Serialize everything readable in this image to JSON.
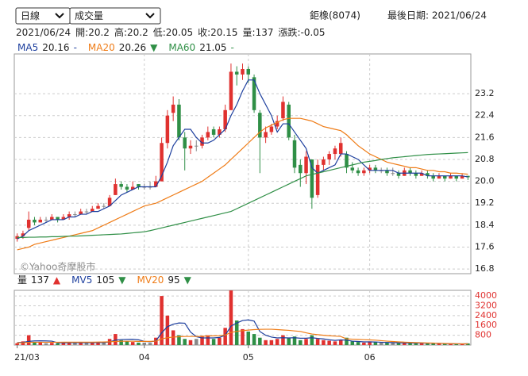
{
  "header": {
    "period": "日線",
    "indicator": "成交量",
    "stock": "鉅橡(8074)",
    "last_date": "最後日期: 2021/06/24"
  },
  "info": {
    "date": "2021/06/24",
    "fields": [
      {
        "label": "開:",
        "value": 20.2
      },
      {
        "label": "高:",
        "value": 20.2
      },
      {
        "label": "低:",
        "value": 20.05
      },
      {
        "label": "收:",
        "value": 20.15
      },
      {
        "label": "量:",
        "value": 137
      },
      {
        "label": "漲跌:",
        "value": -0.05
      }
    ]
  },
  "chart_data": {
    "type": "candlestick",
    "watermark": "©Yahoo奇摩股市",
    "up_color": "#e0312f",
    "down_color": "#2f8f46",
    "flat_color": "#888888",
    "grid": true,
    "categories": [
      "21/03",
      null,
      null,
      null,
      null,
      null,
      null,
      null,
      null,
      null,
      null,
      null,
      null,
      null,
      null,
      null,
      null,
      null,
      null,
      null,
      null,
      null,
      "04",
      null,
      null,
      null,
      null,
      null,
      null,
      null,
      null,
      null,
      null,
      null,
      null,
      null,
      null,
      null,
      null,
      null,
      "05",
      null,
      null,
      null,
      null,
      null,
      null,
      null,
      null,
      null,
      null,
      null,
      null,
      null,
      null,
      null,
      null,
      null,
      null,
      null,
      null,
      "06",
      null,
      null,
      null,
      null,
      null,
      null,
      null,
      null,
      null,
      null,
      null,
      null,
      null,
      null,
      null,
      null,
      null
    ],
    "open": [
      17.9,
      18.0,
      18.3,
      18.6,
      18.5,
      18.6,
      18.6,
      18.7,
      18.6,
      18.7,
      18.8,
      18.8,
      18.9,
      18.9,
      19.0,
      19.1,
      19.1,
      19.5,
      19.9,
      19.8,
      19.7,
      19.9,
      19.8,
      19.8,
      19.8,
      20.0,
      21.4,
      22.5,
      22.8,
      21.6,
      21.2,
      21.3,
      21.3,
      21.6,
      21.9,
      21.7,
      21.9,
      22.6,
      24.0,
      23.9,
      24.1,
      23.8,
      22.5,
      21.6,
      21.8,
      22.0,
      22.3,
      22.8,
      21.5,
      20.6,
      20.3,
      20.8,
      19.5,
      20.6,
      20.8,
      21.0,
      21.0,
      21.0,
      20.5,
      20.4,
      20.3,
      20.4,
      20.5,
      20.4,
      20.4,
      20.3,
      20.3,
      20.2,
      20.4,
      20.3,
      20.2,
      20.3,
      20.2,
      20.1,
      20.2,
      20.1,
      20.2,
      20.1,
      20.2
    ],
    "high": [
      18.1,
      18.2,
      18.9,
      18.7,
      18.7,
      18.7,
      18.8,
      18.7,
      18.8,
      18.9,
      18.9,
      19.0,
      19.0,
      19.1,
      19.2,
      19.2,
      19.5,
      20.1,
      20.0,
      19.9,
      20.0,
      19.9,
      19.9,
      20.0,
      20.2,
      21.6,
      22.6,
      23.1,
      23.0,
      21.8,
      21.5,
      21.5,
      21.7,
      22.0,
      22.0,
      22.0,
      22.8,
      24.3,
      24.2,
      24.3,
      24.2,
      23.9,
      22.6,
      22.0,
      22.1,
      22.4,
      23.1,
      22.9,
      21.7,
      20.8,
      21.1,
      20.8,
      20.8,
      20.9,
      21.1,
      21.3,
      21.6,
      21.1,
      20.7,
      20.5,
      20.5,
      20.6,
      20.6,
      20.5,
      20.5,
      20.5,
      20.4,
      20.5,
      20.5,
      20.4,
      20.4,
      20.4,
      20.3,
      20.3,
      20.2,
      20.3,
      20.2,
      20.3,
      20.2
    ],
    "low": [
      17.8,
      17.9,
      18.2,
      18.4,
      18.5,
      18.5,
      18.6,
      18.5,
      18.6,
      18.6,
      18.7,
      18.8,
      18.8,
      18.9,
      19.0,
      19.0,
      19.1,
      19.5,
      19.7,
      19.6,
      19.7,
      19.7,
      19.7,
      19.7,
      19.8,
      20.0,
      21.2,
      22.2,
      21.5,
      20.4,
      21.0,
      21.1,
      21.2,
      21.5,
      21.6,
      21.6,
      21.8,
      22.6,
      23.5,
      23.7,
      23.6,
      22.5,
      20.3,
      21.4,
      21.7,
      21.9,
      22.2,
      21.5,
      20.3,
      19.8,
      19.9,
      19.0,
      19.4,
      20.4,
      20.6,
      20.8,
      20.9,
      20.3,
      20.3,
      20.2,
      20.2,
      20.3,
      20.3,
      20.3,
      20.2,
      20.2,
      20.1,
      20.2,
      20.2,
      20.1,
      20.2,
      20.1,
      20.0,
      20.1,
      20.0,
      20.1,
      20.0,
      20.1,
      20.05
    ],
    "close": [
      18.0,
      18.1,
      18.6,
      18.5,
      18.6,
      18.6,
      18.7,
      18.6,
      18.7,
      18.8,
      18.8,
      18.9,
      18.9,
      19.0,
      19.1,
      19.1,
      19.4,
      19.9,
      19.8,
      19.7,
      19.8,
      19.8,
      19.8,
      19.8,
      20.0,
      21.4,
      22.4,
      22.8,
      21.6,
      21.2,
      21.3,
      21.3,
      21.6,
      21.8,
      21.7,
      21.9,
      22.6,
      24.0,
      23.9,
      24.1,
      23.9,
      22.6,
      21.6,
      21.8,
      22.0,
      22.2,
      22.9,
      21.6,
      20.5,
      20.3,
      20.9,
      19.4,
      20.6,
      20.8,
      21.0,
      21.2,
      21.4,
      20.5,
      20.4,
      20.3,
      20.4,
      20.5,
      20.4,
      20.4,
      20.3,
      20.3,
      20.2,
      20.4,
      20.3,
      20.2,
      20.3,
      20.2,
      20.1,
      20.2,
      20.1,
      20.2,
      20.1,
      20.2,
      20.15
    ],
    "volume_label": "量",
    "volume_trend": "▲",
    "volume_trend_color": "#e0312f",
    "volume": [
      150,
      300,
      800,
      250,
      200,
      150,
      180,
      150,
      200,
      220,
      180,
      200,
      160,
      180,
      250,
      200,
      500,
      900,
      400,
      300,
      250,
      200,
      200,
      180,
      600,
      4000,
      2400,
      1200,
      800,
      500,
      400,
      500,
      700,
      800,
      500,
      600,
      1400,
      4450,
      2000,
      1300,
      1100,
      900,
      600,
      400,
      400,
      500,
      800,
      600,
      700,
      400,
      500,
      800,
      500,
      400,
      350,
      300,
      400,
      600,
      300,
      250,
      200,
      300,
      250,
      200,
      200,
      180,
      150,
      200,
      180,
      150,
      160,
      150,
      140,
      150,
      100,
      90,
      80,
      120,
      137
    ],
    "series": [
      {
        "name": "MA5",
        "color": "#1d3f9e",
        "trend": "-",
        "trend_color": "#1d3f9e",
        "values": [
          17.9,
          18.0,
          18.2,
          18.3,
          18.4,
          18.5,
          18.6,
          18.6,
          18.6,
          18.7,
          18.7,
          18.8,
          18.8,
          18.9,
          18.9,
          19.0,
          19.1,
          19.3,
          19.5,
          19.6,
          19.7,
          19.8,
          19.8,
          19.8,
          19.8,
          20.2,
          20.7,
          21.3,
          21.6,
          21.9,
          21.9,
          21.6,
          21.4,
          21.4,
          21.5,
          21.7,
          21.9,
          22.4,
          22.8,
          23.3,
          23.7,
          23.7,
          23.2,
          22.8,
          22.4,
          21.8,
          22.1,
          22.1,
          21.8,
          21.5,
          21.2,
          20.5,
          20.3,
          20.4,
          20.5,
          20.6,
          21.0,
          21.0,
          20.9,
          20.8,
          20.6,
          20.4,
          20.4,
          20.4,
          20.4,
          20.4,
          20.3,
          20.3,
          20.3,
          20.3,
          20.3,
          20.2,
          20.2,
          20.2,
          20.2,
          20.2,
          20.2,
          20.2,
          20.16
        ]
      },
      {
        "name": "MA20",
        "color": "#ef7c17",
        "trend": "▼",
        "trend_color": "#2f8f46",
        "values": [
          17.5,
          17.55,
          17.6,
          17.7,
          17.75,
          17.8,
          17.85,
          17.9,
          17.95,
          18.0,
          18.05,
          18.1,
          18.15,
          18.2,
          18.3,
          18.4,
          18.5,
          18.6,
          18.7,
          18.8,
          18.9,
          19.0,
          19.1,
          19.15,
          19.2,
          19.3,
          19.4,
          19.5,
          19.6,
          19.7,
          19.8,
          19.9,
          20.0,
          20.15,
          20.3,
          20.45,
          20.6,
          20.8,
          21.0,
          21.2,
          21.4,
          21.6,
          21.8,
          21.95,
          22.05,
          22.15,
          22.25,
          22.3,
          22.3,
          22.3,
          22.25,
          22.2,
          22.1,
          22.0,
          21.95,
          21.9,
          21.85,
          21.7,
          21.5,
          21.3,
          21.15,
          21.0,
          20.9,
          20.8,
          20.7,
          20.65,
          20.6,
          20.55,
          20.5,
          20.5,
          20.45,
          20.4,
          20.4,
          20.35,
          20.35,
          20.3,
          20.3,
          20.28,
          20.26
        ]
      },
      {
        "name": "MA60",
        "color": "#2f8f46",
        "trend": "-",
        "trend_color": "#2f8f46",
        "values": [
          17.95,
          17.95,
          17.96,
          17.96,
          17.97,
          17.97,
          17.98,
          17.98,
          17.99,
          18.0,
          18.0,
          18.01,
          18.02,
          18.03,
          18.04,
          18.05,
          18.06,
          18.07,
          18.08,
          18.1,
          18.12,
          18.14,
          18.16,
          18.2,
          18.25,
          18.3,
          18.35,
          18.4,
          18.45,
          18.5,
          18.55,
          18.6,
          18.65,
          18.7,
          18.75,
          18.8,
          18.85,
          18.9,
          19.0,
          19.1,
          19.2,
          19.3,
          19.4,
          19.5,
          19.6,
          19.7,
          19.8,
          19.9,
          20.0,
          20.1,
          20.2,
          20.25,
          20.3,
          20.35,
          20.4,
          20.45,
          20.5,
          20.55,
          20.6,
          20.65,
          20.7,
          20.73,
          20.76,
          20.8,
          20.83,
          20.86,
          20.88,
          20.9,
          20.92,
          20.94,
          20.96,
          20.98,
          20.99,
          21.0,
          21.01,
          21.02,
          21.03,
          21.04,
          21.05
        ]
      }
    ],
    "volume_series": [
      {
        "name": "MV5",
        "color": "#1d3f9e",
        "trend": "▼",
        "trend_color": "#2f8f46",
        "values": [
          200,
          220,
          300,
          340,
          350,
          340,
          320,
          190,
          180,
          190,
          190,
          190,
          190,
          190,
          200,
          200,
          260,
          400,
          450,
          460,
          470,
          430,
          300,
          270,
          330,
          1000,
          1500,
          1700,
          1800,
          1780,
          1060,
          680,
          580,
          580,
          580,
          620,
          800,
          1550,
          1800,
          2000,
          2050,
          1950,
          1100,
          800,
          650,
          580,
          600,
          580,
          600,
          560,
          560,
          600,
          540,
          500,
          430,
          380,
          420,
          400,
          320,
          290,
          260,
          260,
          250,
          230,
          210,
          200,
          180,
          180,
          170,
          160,
          160,
          150,
          150,
          140,
          120,
          110,
          100,
          100,
          105
        ]
      },
      {
        "name": "MV20",
        "color": "#ef7c17",
        "trend": "▼",
        "trend_color": "#2f8f46",
        "values": [
          180,
          190,
          220,
          230,
          230,
          230,
          230,
          230,
          240,
          240,
          240,
          240,
          240,
          240,
          245,
          250,
          265,
          300,
          310,
          310,
          310,
          300,
          300,
          300,
          320,
          500,
          600,
          650,
          680,
          700,
          700,
          700,
          720,
          740,
          750,
          760,
          820,
          1030,
          1120,
          1170,
          1220,
          1260,
          1280,
          1290,
          1290,
          1260,
          1230,
          1200,
          1150,
          1110,
          1000,
          900,
          850,
          800,
          760,
          730,
          700,
          500,
          480,
          460,
          440,
          420,
          400,
          360,
          320,
          290,
          260,
          240,
          220,
          200,
          190,
          170,
          160,
          140,
          130,
          120,
          110,
          100,
          95
        ]
      }
    ],
    "ylim": [
      16.63,
      24.65
    ],
    "yticks": [
      23.2,
      22.4,
      21.6,
      20.8,
      {
        "value": 20,
        "label": "20.0"
      },
      19.2,
      18.4,
      17.6,
      16.8
    ],
    "volume_ylim": [
      0,
      4460
    ],
    "volume_yticks": [
      4000,
      3200,
      2400,
      1600,
      800
    ],
    "volume_tick_color": "#e0312f"
  }
}
